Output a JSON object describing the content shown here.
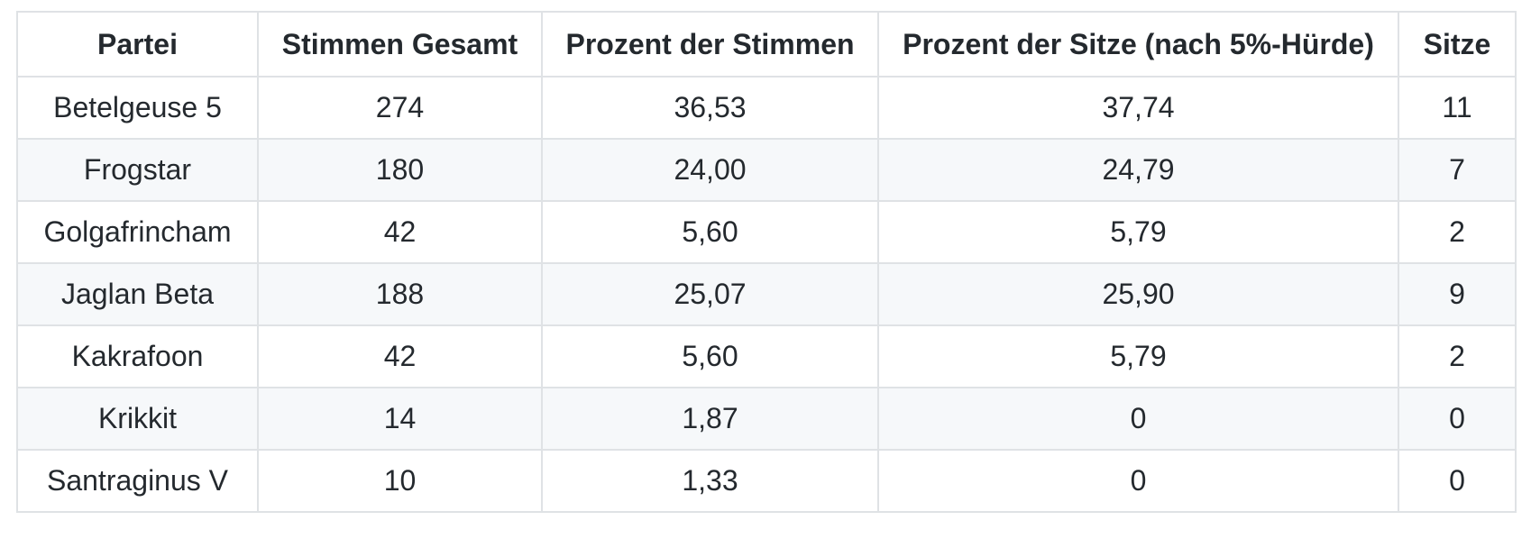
{
  "colors": {
    "background": "#ffffff",
    "stripe_row": "#f6f8fa",
    "border": "#dfe2e5",
    "text": "#24292e"
  },
  "table": {
    "columns": [
      "Partei",
      "Stimmen Gesamt",
      "Prozent der Stimmen",
      "Prozent der Sitze (nach 5%-Hürde)",
      "Sitze"
    ],
    "rows": [
      [
        "Betelgeuse 5",
        "274",
        "36,53",
        "37,74",
        "11"
      ],
      [
        "Frogstar",
        "180",
        "24,00",
        "24,79",
        "7"
      ],
      [
        "Golgafrincham",
        "42",
        "5,60",
        "5,79",
        "2"
      ],
      [
        "Jaglan Beta",
        "188",
        "25,07",
        "25,90",
        "9"
      ],
      [
        "Kakrafoon",
        "42",
        "5,60",
        "5,79",
        "2"
      ],
      [
        "Krikkit",
        "14",
        "1,87",
        "0",
        "0"
      ],
      [
        "Santraginus V",
        "10",
        "1,33",
        "0",
        "0"
      ]
    ]
  },
  "chart_data": {
    "type": "table",
    "title": "",
    "columns": [
      "Partei",
      "Stimmen Gesamt",
      "Prozent der Stimmen",
      "Prozent der Sitze (nach 5%-Hürde)",
      "Sitze"
    ],
    "series": [
      {
        "name": "Stimmen Gesamt",
        "categories": [
          "Betelgeuse 5",
          "Frogstar",
          "Golgafrincham",
          "Jaglan Beta",
          "Kakrafoon",
          "Krikkit",
          "Santraginus V"
        ],
        "values": [
          274,
          180,
          42,
          188,
          42,
          14,
          10
        ]
      },
      {
        "name": "Prozent der Stimmen",
        "categories": [
          "Betelgeuse 5",
          "Frogstar",
          "Golgafrincham",
          "Jaglan Beta",
          "Kakrafoon",
          "Krikkit",
          "Santraginus V"
        ],
        "values": [
          36.53,
          24.0,
          5.6,
          25.07,
          5.6,
          1.87,
          1.33
        ]
      },
      {
        "name": "Prozent der Sitze (nach 5%-Hürde)",
        "categories": [
          "Betelgeuse 5",
          "Frogstar",
          "Golgafrincham",
          "Jaglan Beta",
          "Kakrafoon",
          "Krikkit",
          "Santraginus V"
        ],
        "values": [
          37.74,
          24.79,
          5.79,
          25.9,
          5.79,
          0,
          0
        ]
      },
      {
        "name": "Sitze",
        "categories": [
          "Betelgeuse 5",
          "Frogstar",
          "Golgafrincham",
          "Jaglan Beta",
          "Kakrafoon",
          "Krikkit",
          "Santraginus V"
        ],
        "values": [
          11,
          7,
          2,
          9,
          2,
          0,
          0
        ]
      }
    ],
    "decimal_separator": ",",
    "layout": "striped-bordered-table, all cells center-aligned"
  }
}
